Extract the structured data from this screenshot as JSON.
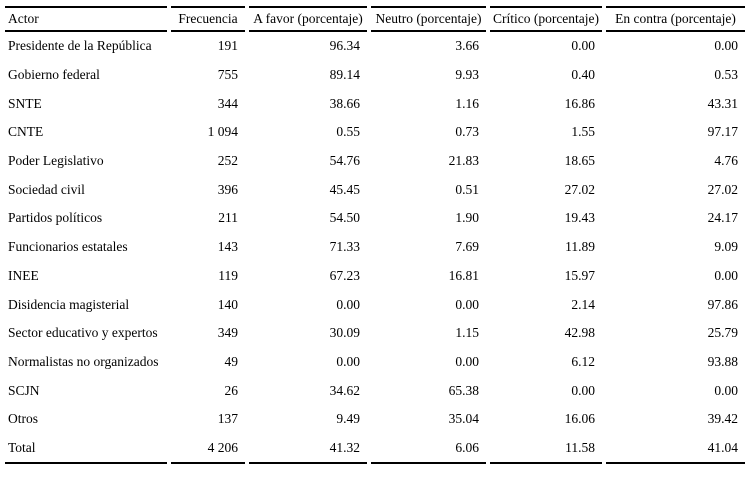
{
  "colors": {
    "text": "#000000",
    "background": "#ffffff",
    "rule": "#000000"
  },
  "table": {
    "columns": [
      "Actor",
      "Frecuencia",
      "A favor (porcentaje)",
      "Neutro (porcentaje)",
      "Crítico (porcentaje)",
      "En contra (porcentaje)"
    ],
    "rows": [
      [
        "Presidente de la República",
        "191",
        "96.34",
        "3.66",
        "0.00",
        "0.00"
      ],
      [
        "Gobierno federal",
        "755",
        "89.14",
        "9.93",
        "0.40",
        "0.53"
      ],
      [
        "SNTE",
        "344",
        "38.66",
        "1.16",
        "16.86",
        "43.31"
      ],
      [
        "CNTE",
        "1 094",
        "0.55",
        "0.73",
        "1.55",
        "97.17"
      ],
      [
        "Poder Legislativo",
        "252",
        "54.76",
        "21.83",
        "18.65",
        "4.76"
      ],
      [
        "Sociedad civil",
        "396",
        "45.45",
        "0.51",
        "27.02",
        "27.02"
      ],
      [
        "Partidos políticos",
        "211",
        "54.50",
        "1.90",
        "19.43",
        "24.17"
      ],
      [
        "Funcionarios estatales",
        "143",
        "71.33",
        "7.69",
        "11.89",
        "9.09"
      ],
      [
        "INEE",
        "119",
        "67.23",
        "16.81",
        "15.97",
        "0.00"
      ],
      [
        "Disidencia magisterial",
        "140",
        "0.00",
        "0.00",
        "2.14",
        "97.86"
      ],
      [
        "Sector educativo y expertos",
        "349",
        "30.09",
        "1.15",
        "42.98",
        "25.79"
      ],
      [
        "Normalistas no organizados",
        "49",
        "0.00",
        "0.00",
        "6.12",
        "93.88"
      ],
      [
        "SCJN",
        "26",
        "34.62",
        "65.38",
        "0.00",
        "0.00"
      ],
      [
        "Otros",
        "137",
        "9.49",
        "35.04",
        "16.06",
        "39.42"
      ],
      [
        "Total",
        "4 206",
        "41.32",
        "6.06",
        "11.58",
        "41.04"
      ]
    ]
  }
}
